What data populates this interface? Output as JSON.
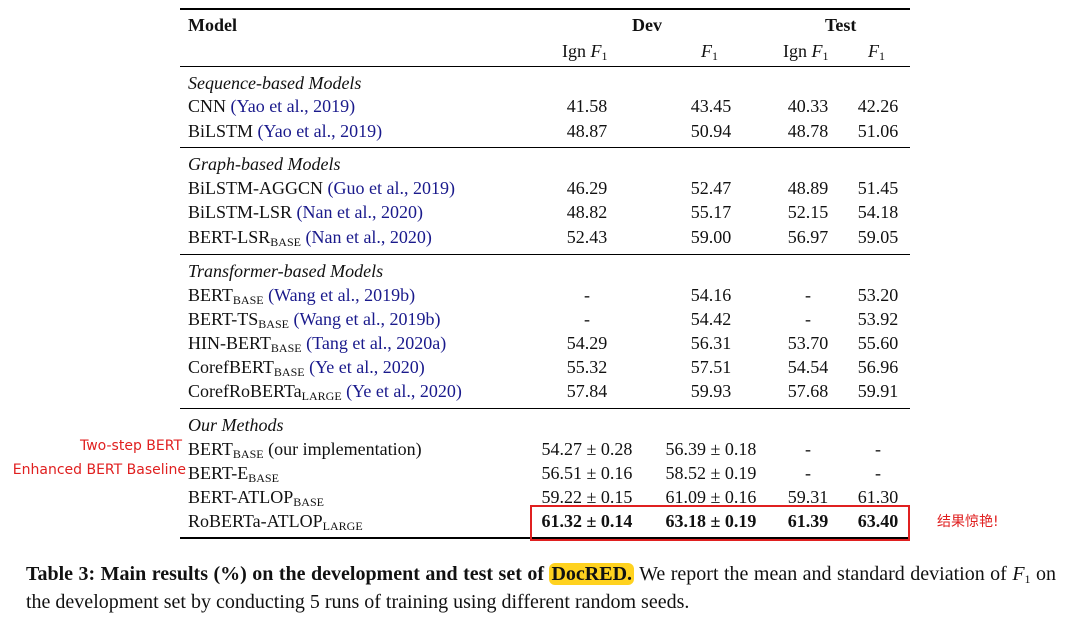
{
  "header": {
    "model": "Model",
    "dev": "Dev",
    "test": "Test",
    "ign": "Ign ",
    "f": "F",
    "sub1": "1"
  },
  "sections": [
    {
      "title": "Sequence-based Models",
      "rows": [
        {
          "name": "CNN ",
          "sub": "",
          "after": "",
          "cite": "(Yao et al., 2019)",
          "dev_ign": "41.58",
          "dev_f1": "43.45",
          "test_ign": "40.33",
          "test_f1": "42.26"
        },
        {
          "name": "BiLSTM ",
          "sub": "",
          "after": "",
          "cite": "(Yao et al., 2019)",
          "dev_ign": "48.87",
          "dev_f1": "50.94",
          "test_ign": "48.78",
          "test_f1": "51.06"
        }
      ]
    },
    {
      "title": "Graph-based Models",
      "rows": [
        {
          "name": "BiLSTM-AGGCN ",
          "sub": "",
          "after": "",
          "cite": "(Guo et al., 2019)",
          "dev_ign": "46.29",
          "dev_f1": "52.47",
          "test_ign": "48.89",
          "test_f1": "51.45"
        },
        {
          "name": "BiLSTM-LSR ",
          "sub": "",
          "after": "",
          "cite": "(Nan et al., 2020)",
          "dev_ign": "48.82",
          "dev_f1": "55.17",
          "test_ign": "52.15",
          "test_f1": "54.18"
        },
        {
          "name": "BERT-LSR",
          "sub": "BASE",
          "after": " ",
          "cite": "(Nan et al., 2020)",
          "dev_ign": "52.43",
          "dev_f1": "59.00",
          "test_ign": "56.97",
          "test_f1": "59.05"
        }
      ]
    },
    {
      "title": "Transformer-based Models",
      "rows": [
        {
          "name": "BERT",
          "sub": "BASE",
          "after": " ",
          "cite": "(Wang et al., 2019b)",
          "dev_ign": "-",
          "dev_f1": "54.16",
          "test_ign": "-",
          "test_f1": "53.20"
        },
        {
          "name": "BERT-TS",
          "sub": "BASE",
          "after": " ",
          "cite": "(Wang et al., 2019b)",
          "dev_ign": "-",
          "dev_f1": "54.42",
          "test_ign": "-",
          "test_f1": "53.92"
        },
        {
          "name": "HIN-BERT",
          "sub": "BASE",
          "after": " ",
          "cite": "(Tang et al., 2020a)",
          "dev_ign": "54.29",
          "dev_f1": "56.31",
          "test_ign": "53.70",
          "test_f1": "55.60"
        },
        {
          "name": "CorefBERT",
          "sub": "BASE",
          "after": " ",
          "cite": "(Ye et al., 2020)",
          "dev_ign": "55.32",
          "dev_f1": "57.51",
          "test_ign": "54.54",
          "test_f1": "56.96"
        },
        {
          "name": "CorefRoBERTa",
          "sub": "LARGE",
          "after": " ",
          "cite": "(Ye et al., 2020)",
          "dev_ign": "57.84",
          "dev_f1": "59.93",
          "test_ign": "57.68",
          "test_f1": "59.91"
        }
      ]
    },
    {
      "title": "Our Methods",
      "rows": [
        {
          "name": "BERT",
          "sub": "BASE",
          "after": " (our implementation)",
          "cite": "",
          "dev_ign": "54.27 ± 0.28",
          "dev_f1": "56.39 ± 0.18",
          "test_ign": "-",
          "test_f1": "-"
        },
        {
          "name": "BERT-E",
          "sub": "BASE",
          "after": "",
          "cite": "",
          "dev_ign": "56.51 ± 0.16",
          "dev_f1": "58.52 ± 0.19",
          "test_ign": "-",
          "test_f1": "-"
        },
        {
          "name": "BERT-ATLOP",
          "sub": "BASE",
          "after": "",
          "cite": "",
          "dev_ign": "59.22 ± 0.15",
          "dev_f1": "61.09 ± 0.16",
          "test_ign": "59.31",
          "test_f1": "61.30"
        },
        {
          "name": "RoBERTa-ATLOP",
          "sub": "LARGE",
          "after": "",
          "cite": "",
          "dev_ign": "61.32 ± 0.14",
          "dev_f1": "63.18 ± 0.19",
          "test_ign": "61.39",
          "test_f1": "63.40",
          "bold": true
        }
      ]
    }
  ],
  "annotations": {
    "two_step": "Two-step BERT",
    "enhanced": "Enhanced BERT Baseline",
    "amazing": "结果惊艳!"
  },
  "caption": {
    "label": "Table 3: Main results (%) on the development and test set of ",
    "highlight": "DocRED.",
    "line1_rest": " We report the mean and standard",
    "line2_a": "deviation of ",
    "line2_f": "F",
    "line2_sub": "1",
    "line2_b": " on the development set by conducting 5 runs of training using different random seeds."
  },
  "colors": {
    "annotation_red": "#e02020",
    "citation_blue": "#1a1a8c",
    "highlight_yellow": "#ffd21f"
  }
}
